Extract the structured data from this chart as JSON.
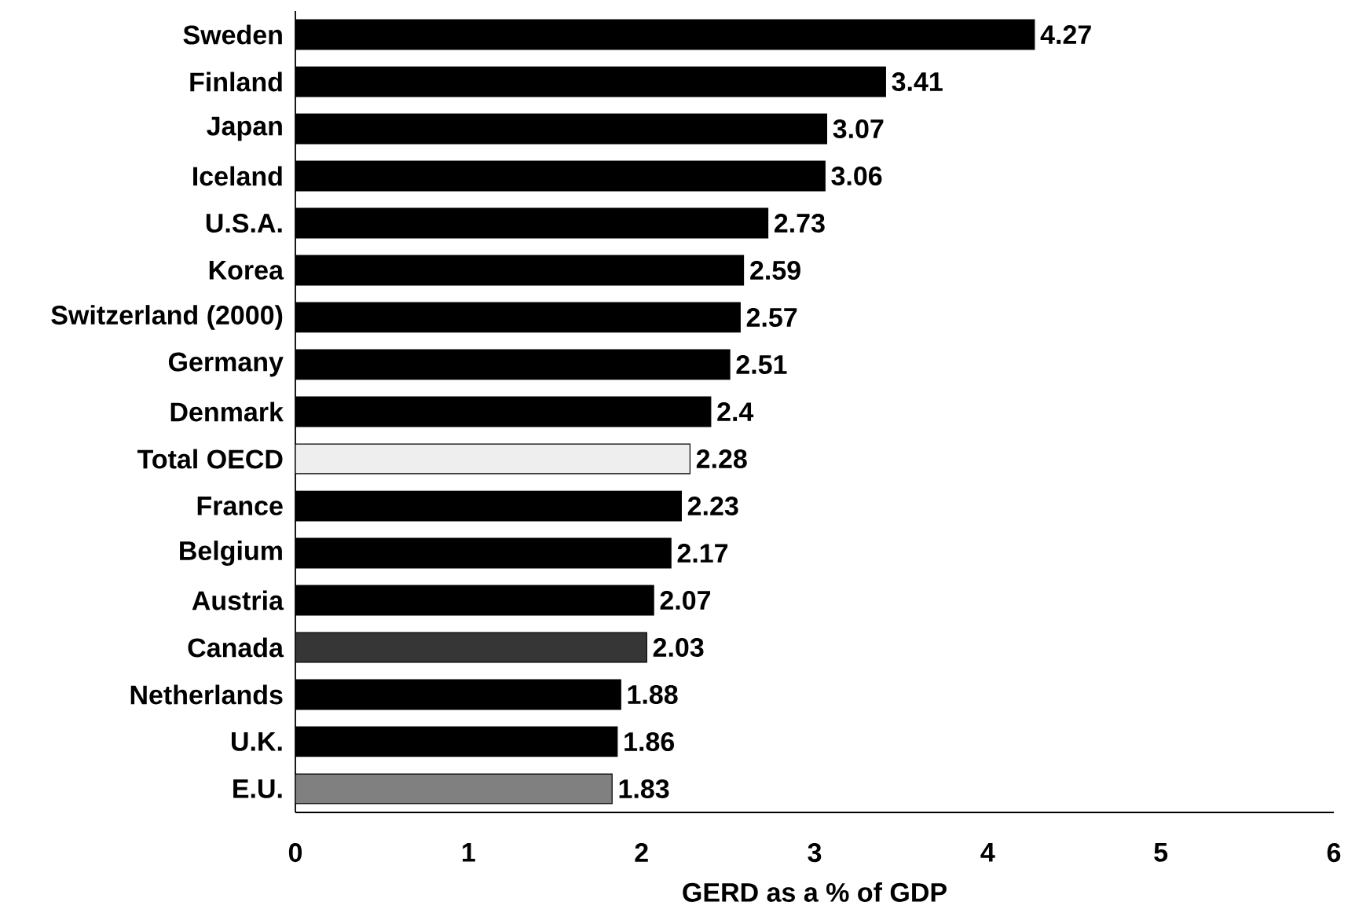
{
  "chart_data": {
    "type": "bar",
    "orientation": "horizontal",
    "categories": [
      "Sweden",
      "Finland",
      "Japan",
      "Iceland",
      "U.S.A.",
      "Korea",
      "Switzerland (2000)",
      "Germany",
      "Denmark",
      "Total OECD",
      "France",
      "Belgium",
      "Austria",
      "Canada",
      "Netherlands",
      "U.K.",
      "E.U."
    ],
    "values": [
      4.27,
      3.41,
      3.07,
      3.06,
      2.73,
      2.59,
      2.57,
      2.51,
      2.4,
      2.28,
      2.23,
      2.17,
      2.07,
      2.03,
      1.88,
      1.86,
      1.83
    ],
    "colors": [
      "#000000",
      "#000000",
      "#000000",
      "#000000",
      "#000000",
      "#000000",
      "#000000",
      "#000000",
      "#000000",
      "#eeeeee",
      "#000000",
      "#000000",
      "#000000",
      "#363636",
      "#000000",
      "#000000",
      "#808080"
    ],
    "xlabel": "GERD as a % of GDP",
    "xlim": [
      0,
      6
    ],
    "xticks": [
      0,
      1,
      2,
      3,
      4,
      5,
      6
    ],
    "data_labels": true
  }
}
